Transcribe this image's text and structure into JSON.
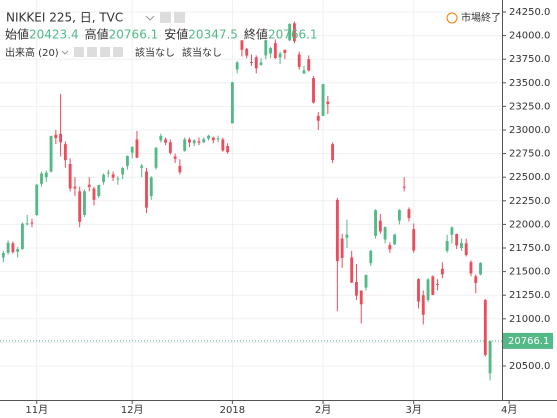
{
  "chart_data": {
    "type": "candlestick",
    "title": "NIKKEI 225, 日, TVC",
    "status": "市場終了",
    "ohlc_legend": {
      "labels": [
        "始値",
        "高値",
        "安値",
        "終値"
      ],
      "values": [
        20423.4,
        20766.1,
        20347.5,
        20766.1
      ]
    },
    "indicator": {
      "name": "出来高 (20)",
      "values": [
        "該当なし",
        "該当なし"
      ]
    },
    "last_price": 20766.1,
    "up_color": "#53b987",
    "down_color": "#eb4d5c",
    "grid": true,
    "xlim": [
      -0.7,
      104.5
    ],
    "xticks": [
      {
        "value": 7,
        "label": "11月"
      },
      {
        "value": 27,
        "label": "12月"
      },
      {
        "value": 48,
        "label": "2018"
      },
      {
        "value": 67,
        "label": "2月"
      },
      {
        "value": 86,
        "label": "3月"
      },
      {
        "value": 106,
        "label": "4月"
      }
    ],
    "ylim": [
      20140,
      24377
    ],
    "yticks": [
      {
        "value": 20500,
        "label": "20500.0"
      },
      {
        "value": 20750,
        "label": "20750.0"
      },
      {
        "value": 21000,
        "label": "21000.0"
      },
      {
        "value": 21250,
        "label": "21250.0"
      },
      {
        "value": 21500,
        "label": "21500.0"
      },
      {
        "value": 21750,
        "label": "21750.0"
      },
      {
        "value": 22000,
        "label": "22000.0"
      },
      {
        "value": 22250,
        "label": "22250.0"
      },
      {
        "value": 22500,
        "label": "22500.0"
      },
      {
        "value": 22750,
        "label": "22750.0"
      },
      {
        "value": 23000,
        "label": "23000.0"
      },
      {
        "value": 23250,
        "label": "23250.0"
      },
      {
        "value": 23500,
        "label": "23500.0"
      },
      {
        "value": 23750,
        "label": "23750.0"
      },
      {
        "value": 24000,
        "label": "24000.0"
      },
      {
        "value": 24250,
        "label": "24250.0"
      }
    ],
    "open": [
      21650,
      21700,
      21800,
      21710,
      21740,
      22010,
      22020,
      22100,
      22430,
      22500,
      22560,
      22950,
      22960,
      22850,
      22640,
      22400,
      22350,
      22100,
      22420,
      22380,
      22300,
      22450,
      22540,
      22530,
      22480,
      22530,
      22620,
      22760,
      22900,
      22600,
      22560,
      22300,
      22600,
      22890,
      22900,
      22870,
      22720,
      22620,
      22780,
      22900,
      22860,
      22880,
      22870,
      22910,
      22920,
      22900,
      22900,
      22830,
      23070,
      23640,
      23950,
      23860,
      23720,
      23770,
      23690,
      23790,
      23810,
      23920,
      23770,
      23850,
      23950,
      24130,
      23800,
      23600,
      23750,
      23550,
      23150,
      23150,
      23300,
      22850,
      22260,
      21850,
      21860,
      21650,
      21390,
      21300,
      21330,
      21590,
      21880,
      22040,
      21840,
      21780,
      21790,
      22040,
      22400,
      22160,
      21950,
      21420,
      21250,
      21200,
      21450,
      21370,
      21530,
      21720,
      21890,
      21900,
      21750,
      21800,
      21600,
      21450,
      21470,
      21200,
      20423.4
    ],
    "high": [
      21720,
      21830,
      21820,
      21760,
      22020,
      22100,
      22060,
      22430,
      22560,
      22570,
      22940,
      23000,
      23382,
      22880,
      22700,
      22500,
      22400,
      22370,
      22500,
      22400,
      22420,
      22540,
      22580,
      22560,
      22510,
      22610,
      22730,
      22830,
      22990,
      22640,
      22600,
      22510,
      22820,
      22960,
      22920,
      22900,
      22750,
      22690,
      22920,
      22920,
      22900,
      22920,
      22920,
      22950,
      22930,
      22940,
      22920,
      22860,
      23510,
      23730,
      23950,
      23870,
      23800,
      23790,
      23760,
      23960,
      23880,
      23960,
      23830,
      23850,
      24130,
      24150,
      23830,
      23680,
      23790,
      23570,
      23190,
      23490,
      23360,
      22870,
      22280,
      21900,
      22050,
      21720,
      21580,
      21300,
      21470,
      21730,
      22160,
      22110,
      21980,
      21810,
      21900,
      22160,
      22500,
      22180,
      22010,
      21430,
      21300,
      21430,
      21460,
      21420,
      21600,
      21890,
      21980,
      21900,
      21850,
      21850,
      21620,
      21470,
      21600,
      21210,
      20766.1
    ],
    "low": [
      21600,
      21680,
      21690,
      21650,
      21730,
      21990,
      21970,
      22090,
      22400,
      22450,
      22550,
      22850,
      22720,
      22600,
      22350,
      22300,
      21970,
      22080,
      22350,
      22200,
      22280,
      22420,
      22500,
      22460,
      22420,
      22480,
      22580,
      22700,
      22700,
      22500,
      22120,
      22260,
      22580,
      22870,
      22840,
      22740,
      22650,
      22530,
      22770,
      22820,
      22830,
      22840,
      22860,
      22890,
      22860,
      22870,
      22770,
      22750,
      23070,
      23600,
      23780,
      23760,
      23680,
      23600,
      23680,
      23750,
      23760,
      23750,
      23700,
      23750,
      23940,
      23920,
      23640,
      23590,
      23620,
      23280,
      23000,
      23150,
      23170,
      22650,
      21080,
      21540,
      21750,
      21380,
      21200,
      20950,
      21300,
      21560,
      21850,
      21900,
      21800,
      21700,
      21780,
      22000,
      22350,
      22030,
      21700,
      21110,
      20940,
      21180,
      21250,
      21300,
      21430,
      21700,
      21800,
      21740,
      21720,
      21660,
      21450,
      21270,
      21460,
      20600,
      20347.5
    ],
    "close": [
      21697,
      21805,
      21707,
      21739,
      22008,
      22011,
      22011,
      22420,
      22539,
      22548,
      22937,
      22914,
      22869,
      22681,
      22381,
      22380,
      22028,
      22351,
      22397,
      22261,
      22417,
      22523,
      22550,
      22495,
      22486,
      22597,
      22725,
      22819,
      22707,
      22622,
      22177,
      22498,
      22811,
      22938,
      22866,
      22758,
      22694,
      22553,
      22901,
      22868,
      22891,
      22866,
      22902,
      22939,
      22892,
      22911,
      22783,
      22765,
      23506,
      23715,
      23850,
      23788,
      23710,
      23653,
      23714,
      23952,
      23868,
      23763,
      23808,
      23816,
      24124,
      23940,
      23669,
      23631,
      23629,
      23291,
      23098,
      23486,
      23274,
      22682,
      21610,
      21645,
      21891,
      21383,
      21245,
      21154,
      21464,
      21720,
      22150,
      21925,
      21970,
      21736,
      21893,
      22153,
      22389,
      22068,
      21724,
      21182,
      21042,
      21418,
      21253,
      21368,
      21470,
      21824,
      21968,
      21777,
      21803,
      21676,
      21480,
      21380,
      21591,
      20617,
      20766.1
    ]
  }
}
